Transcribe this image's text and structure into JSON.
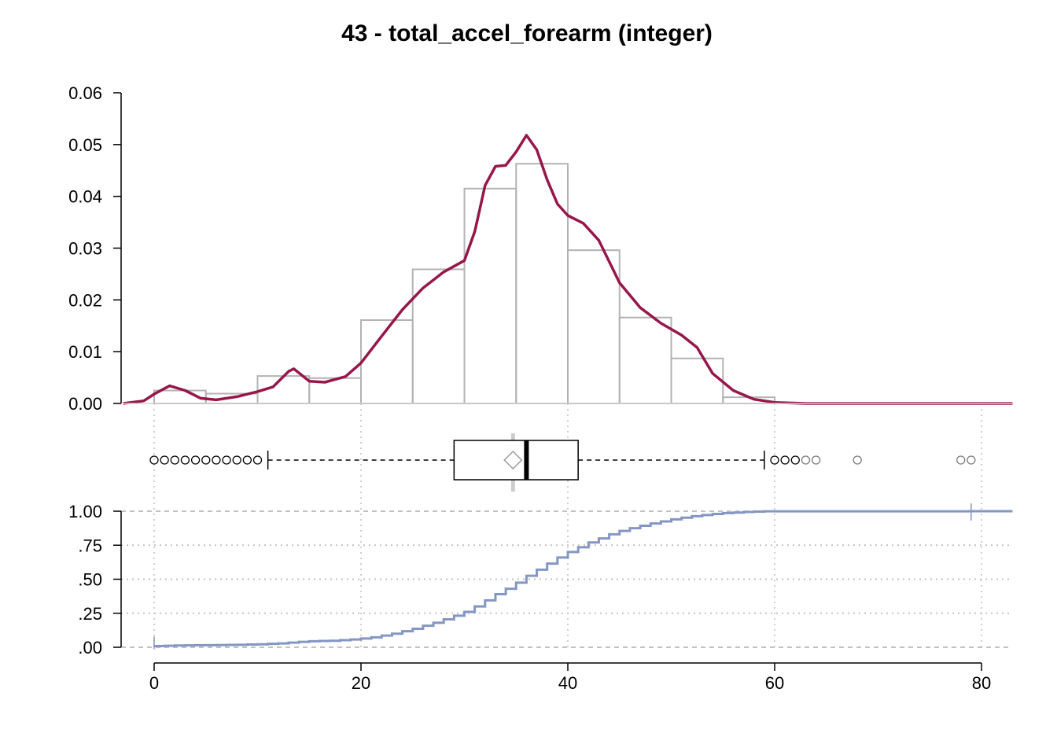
{
  "chart_data": {
    "type": "histogram-density-boxplot-ecdf",
    "title": "43 - total_accel_forearm (integer)",
    "xlim": [
      -3,
      83
    ],
    "x_ticks": [
      0,
      20,
      40,
      60,
      80
    ],
    "x_tick_labels": [
      "0",
      "20",
      "40",
      "60",
      "80"
    ],
    "histogram": {
      "ylim": [
        0,
        0.06
      ],
      "y_ticks": [
        0,
        0.01,
        0.02,
        0.03,
        0.04,
        0.05,
        0.06
      ],
      "y_tick_labels": [
        "0.00",
        "0.01",
        "0.02",
        "0.03",
        "0.04",
        "0.05",
        "0.06"
      ],
      "bins": [
        {
          "from": 0,
          "to": 5,
          "density": 0.0025
        },
        {
          "from": 5,
          "to": 10,
          "density": 0.0019
        },
        {
          "from": 10,
          "to": 15,
          "density": 0.0053
        },
        {
          "from": 15,
          "to": 20,
          "density": 0.0049
        },
        {
          "from": 20,
          "to": 25,
          "density": 0.0161
        },
        {
          "from": 25,
          "to": 30,
          "density": 0.0259
        },
        {
          "from": 30,
          "to": 35,
          "density": 0.0415
        },
        {
          "from": 35,
          "to": 40,
          "density": 0.0463
        },
        {
          "from": 40,
          "to": 45,
          "density": 0.0296
        },
        {
          "from": 45,
          "to": 50,
          "density": 0.0166
        },
        {
          "from": 50,
          "to": 55,
          "density": 0.0087
        },
        {
          "from": 55,
          "to": 60,
          "density": 0.0012
        }
      ],
      "bar_color": "#b3b3b3",
      "density_color": "#96174a",
      "density_curve": [
        [
          -3,
          0.0
        ],
        [
          -1,
          0.0005
        ],
        [
          0,
          0.0018
        ],
        [
          1.5,
          0.0034
        ],
        [
          3,
          0.0025
        ],
        [
          4.5,
          0.001
        ],
        [
          6,
          0.0007
        ],
        [
          8,
          0.0013
        ],
        [
          10,
          0.0023
        ],
        [
          11.5,
          0.0032
        ],
        [
          13,
          0.0062
        ],
        [
          13.5,
          0.0067
        ],
        [
          15,
          0.0043
        ],
        [
          16.5,
          0.0041
        ],
        [
          18.5,
          0.0052
        ],
        [
          20,
          0.0078
        ],
        [
          22,
          0.013
        ],
        [
          24,
          0.0181
        ],
        [
          26,
          0.0223
        ],
        [
          28,
          0.0254
        ],
        [
          30,
          0.0276
        ],
        [
          31,
          0.0332
        ],
        [
          32,
          0.0421
        ],
        [
          33,
          0.0458
        ],
        [
          34,
          0.046
        ],
        [
          35,
          0.0486
        ],
        [
          36,
          0.0518
        ],
        [
          37,
          0.049
        ],
        [
          38,
          0.0432
        ],
        [
          39,
          0.0385
        ],
        [
          40,
          0.0363
        ],
        [
          41.5,
          0.0348
        ],
        [
          43,
          0.0315
        ],
        [
          45,
          0.0233
        ],
        [
          47,
          0.0185
        ],
        [
          49,
          0.0155
        ],
        [
          51,
          0.0132
        ],
        [
          52.5,
          0.0108
        ],
        [
          54,
          0.0058
        ],
        [
          56,
          0.0025
        ],
        [
          58,
          0.0008
        ],
        [
          60,
          0.0002
        ],
        [
          63,
          0.0
        ],
        [
          83,
          0.0
        ]
      ]
    },
    "boxplot": {
      "q1": 29,
      "median": 36,
      "q3": 41,
      "mean": 34.7,
      "whisker_low": 11,
      "whisker_high": 59,
      "outliers_low": [
        0,
        1,
        2,
        3,
        4,
        5,
        6,
        7,
        8,
        9,
        10
      ],
      "outliers_high": [
        60,
        61,
        62,
        63,
        64,
        68,
        78,
        79
      ]
    },
    "ecdf": {
      "ylim": [
        0,
        1
      ],
      "y_ticks": [
        0,
        0.25,
        0.5,
        0.75,
        1
      ],
      "y_tick_labels": [
        ".00",
        ".25",
        ".50",
        ".75",
        "1.00"
      ],
      "color": "#8496c3",
      "values_by_x": [
        [
          0,
          0.009
        ],
        [
          1,
          0.011
        ],
        [
          2,
          0.013
        ],
        [
          3,
          0.014
        ],
        [
          4,
          0.015
        ],
        [
          5,
          0.015
        ],
        [
          6,
          0.016
        ],
        [
          7,
          0.017
        ],
        [
          8,
          0.018
        ],
        [
          9,
          0.02
        ],
        [
          10,
          0.022
        ],
        [
          11,
          0.025
        ],
        [
          12,
          0.028
        ],
        [
          13,
          0.034
        ],
        [
          14,
          0.04
        ],
        [
          15,
          0.044
        ],
        [
          16,
          0.046
        ],
        [
          17,
          0.048
        ],
        [
          18,
          0.052
        ],
        [
          19,
          0.057
        ],
        [
          20,
          0.064
        ],
        [
          21,
          0.073
        ],
        [
          22,
          0.086
        ],
        [
          23,
          0.1
        ],
        [
          24,
          0.118
        ],
        [
          25,
          0.136
        ],
        [
          26,
          0.158
        ],
        [
          27,
          0.18
        ],
        [
          28,
          0.205
        ],
        [
          29,
          0.232
        ],
        [
          30,
          0.26
        ],
        [
          31,
          0.3
        ],
        [
          32,
          0.345
        ],
        [
          33,
          0.39
        ],
        [
          34,
          0.43
        ],
        [
          35,
          0.475
        ],
        [
          36,
          0.525
        ],
        [
          37,
          0.57
        ],
        [
          38,
          0.615
        ],
        [
          39,
          0.66
        ],
        [
          40,
          0.7
        ],
        [
          41,
          0.735
        ],
        [
          42,
          0.77
        ],
        [
          43,
          0.8
        ],
        [
          44,
          0.83
        ],
        [
          45,
          0.855
        ],
        [
          46,
          0.875
        ],
        [
          47,
          0.893
        ],
        [
          48,
          0.91
        ],
        [
          49,
          0.925
        ],
        [
          50,
          0.94
        ],
        [
          51,
          0.952
        ],
        [
          52,
          0.963
        ],
        [
          53,
          0.972
        ],
        [
          54,
          0.98
        ],
        [
          55,
          0.986
        ],
        [
          56,
          0.99
        ],
        [
          57,
          0.994
        ],
        [
          58,
          0.997
        ],
        [
          59,
          0.999
        ],
        [
          64,
          0.9995
        ],
        [
          79,
          1.0
        ]
      ]
    },
    "grid": "dotted vertical at x ticks"
  }
}
